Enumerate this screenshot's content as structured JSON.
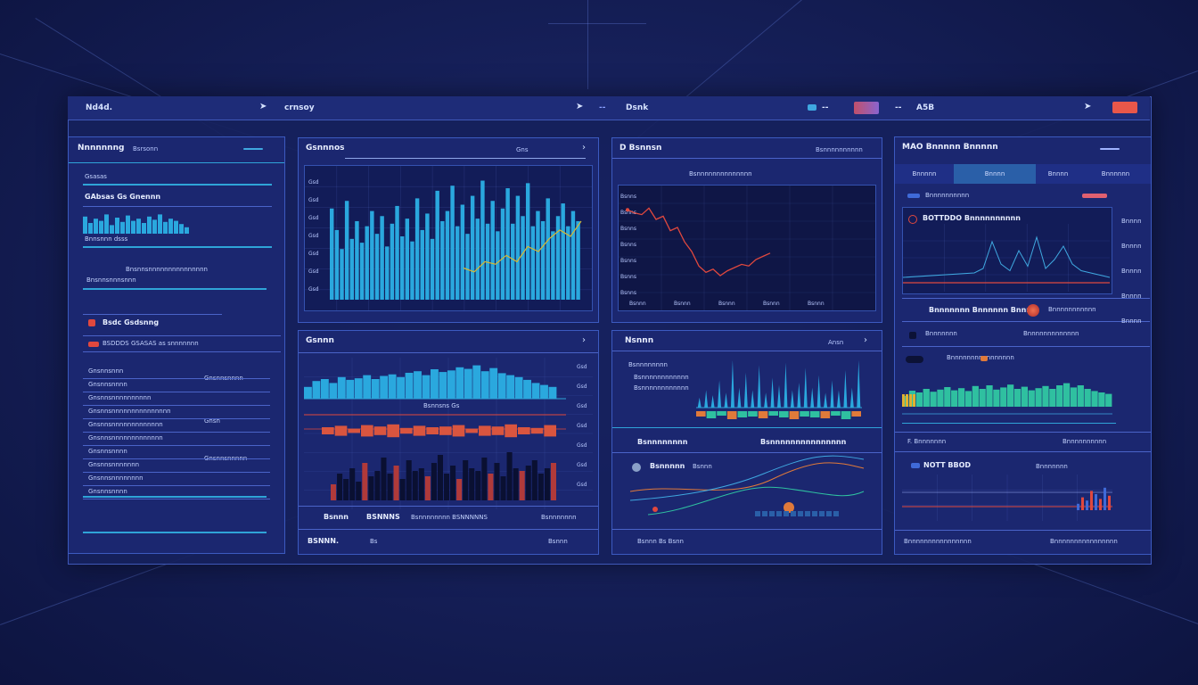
{
  "topbar": {
    "brand": "Nd4d.",
    "nav1": "crnsoy",
    "nav2": "Dsnk",
    "nav3": "A5B",
    "accent": "#e8574a"
  },
  "left_panel": {
    "title": "Nnnnnnng",
    "subtitle": "Bsrsonn",
    "heading1": "Gsasas",
    "heading2": "GAbsas Gs Gnennn",
    "mini_caption": "Bnnsnnn dsss",
    "section_text": "Bnsnnsnnnnnnnnnnnnnnn",
    "section_sub": "Bnsnnsnnnsnnn",
    "item_alert": "Bsdc Gsdsnng",
    "row_header": "BSDDDS GSASAS as snnnnnnn",
    "list_rows": [
      "Gnsnnsnnn",
      "Gnsnnsnnnn",
      "Gnsnnsnnnnnnnnnn",
      "Gnsnnsnnnnnnnnnnnnnnn",
      "Gnsnnsnnnnnnnnnnnnn",
      "Gnsnnsnnnnnnnnnnnnn",
      "Gnsnnsnnnn",
      "Gnsnnsnnnnnnn",
      "Gnsnnsnnnnnnnn",
      "Gnsnnsnnnn"
    ],
    "list_right": [
      "Gnsnnsnnnn",
      "Gnsn",
      "Gnsnnsnnnnn"
    ]
  },
  "panel_a": {
    "title": "Gsnnnos",
    "header_right": "Gns",
    "y_ticks": [
      "Gsd",
      "Gsd",
      "Gsd",
      "Gsd",
      "Gsd",
      "Gsd",
      "Gsd"
    ],
    "bar_color": "#2aa8de",
    "line_color": "#d8b832",
    "bars": [
      0.72,
      0.55,
      0.4,
      0.78,
      0.48,
      0.62,
      0.45,
      0.58,
      0.7,
      0.52,
      0.66,
      0.42,
      0.6,
      0.74,
      0.5,
      0.64,
      0.46,
      0.8,
      0.55,
      0.68,
      0.48,
      0.86,
      0.62,
      0.7,
      0.9,
      0.58,
      0.75,
      0.52,
      0.82,
      0.64,
      0.94,
      0.6,
      0.78,
      0.54,
      0.72,
      0.88,
      0.6,
      0.82,
      0.66,
      0.92,
      0.58,
      0.7,
      0.62,
      0.8,
      0.54,
      0.66,
      0.76,
      0.58,
      0.7,
      0.62
    ]
  },
  "panel_b": {
    "title": "Gsnnn",
    "legend_label": "Bsnnsns Gs",
    "bottom_labels": [
      "Bsnnn",
      "BSNNNS",
      "Bsnnnnnnnn BSNNNNNS",
      "Bsnnnnnnn"
    ],
    "footer_left": "BSNNN.",
    "footer_mid": "Bs",
    "footer_right": "Bsnnn",
    "top_bars": [
      0.3,
      0.45,
      0.5,
      0.4,
      0.55,
      0.48,
      0.52,
      0.6,
      0.5,
      0.58,
      0.62,
      0.55,
      0.66,
      0.7,
      0.6,
      0.75,
      0.68,
      0.72,
      0.8,
      0.76,
      0.85,
      0.7,
      0.78,
      0.65,
      0.6,
      0.55,
      0.48,
      0.4,
      0.35,
      0.3
    ],
    "red_segments": [
      0.5,
      0.7,
      0.3,
      0.8,
      0.6,
      0.9,
      0.4,
      0.7,
      0.5,
      0.6,
      0.8,
      0.3,
      0.7,
      0.6,
      0.9,
      0.5,
      0.4,
      0.8
    ],
    "dark_bars": [
      0.3,
      0.5,
      0.4,
      0.6,
      0.35,
      0.7,
      0.45,
      0.55,
      0.8,
      0.5,
      0.65,
      0.4,
      0.75,
      0.55,
      0.6,
      0.45,
      0.7,
      0.85,
      0.5,
      0.65,
      0.4,
      0.75,
      0.6,
      0.55,
      0.8,
      0.5,
      0.7,
      0.45,
      0.9,
      0.6,
      0.55,
      0.65,
      0.75,
      0.5,
      0.6,
      0.7
    ],
    "bar_color": "#2aa8de",
    "red_color": "#d9553f"
  },
  "panel_c": {
    "title": "D Bsnnsn",
    "header_right": "Bsnnnnnnnnnn",
    "inner_title": "Bsnnnnnnnnnnnnnn",
    "y_ticks": [
      "Bsnns",
      "Bsnns",
      "Bsnns",
      "Bsnns",
      "Bsnns",
      "Bsnns",
      "Bsnns"
    ],
    "x_ticks": [
      "Bsnnn",
      "Bsnnn",
      "Bsnnn",
      "Bsnnn",
      "Bsnnn"
    ],
    "line": [
      0.92,
      0.88,
      0.86,
      0.94,
      0.8,
      0.84,
      0.66,
      0.7,
      0.52,
      0.4,
      0.22,
      0.14,
      0.18,
      0.1,
      0.16,
      0.2,
      0.24,
      0.22,
      0.3,
      0.34,
      0.38
    ],
    "line_color": "#e0483e"
  },
  "panel_d": {
    "title": "Nsnnn",
    "header_right": "Ansn",
    "labels": [
      "Bsnnnnnnnn",
      "Bsnnnnnnnnnnnn",
      "Bsnnnnnnnnnnnn"
    ],
    "mid_left": "Bsnnnnnnnn",
    "mid_right": "Bsnnnnnnnnnnnnnnn",
    "lower_title": "Bsnnnnn",
    "lower_right": "Bsnnn",
    "footer": "Bsnnn Bs Bsnn",
    "spikes": [
      0.2,
      0.35,
      0.25,
      0.55,
      0.3,
      0.95,
      0.4,
      0.7,
      0.35,
      0.85,
      0.3,
      0.6,
      0.45,
      0.9,
      0.35,
      0.5,
      0.8,
      0.4,
      0.65,
      0.3,
      0.55,
      0.35,
      0.75,
      0.4,
      0.95
    ],
    "strip": [
      0.6,
      0.8,
      0.5,
      0.9,
      0.7,
      0.6,
      0.8,
      0.5,
      0.7,
      0.9,
      0.6,
      0.7,
      0.8,
      0.5,
      0.9,
      0.6
    ],
    "spike_color": "#2aa8de",
    "orange": "#e07a3a"
  },
  "panel_e": {
    "title": "MAO Bnnnnn Bnnnnn",
    "tabs": [
      "Bnnnnn",
      "Bnnnn",
      "Bnnnn",
      "Bnnnnnn"
    ],
    "row1_label": "Bnnnnnnnnnn",
    "chart_title": "BOTTDDO Bnnnnnnnnnn",
    "right_ticks": [
      "Bnnnn",
      "Bnnnn",
      "Bnnnn",
      "Bnnnn",
      "Bnnnn"
    ],
    "mid_label": "Bnnnnnnn Bnnnnnn Bnnn",
    "mid_right": "Bnnnnnnnnnnn",
    "row2_label": "Bnnnnnnn",
    "row2_right": "Bnnnnnnnnnnnnn",
    "row3_label": "Bnnnnnnnnnnnnnnnn",
    "section": "F. Bnnnnnnn",
    "section_right": "Bnnnnnnnnnn",
    "lower_title": "NOTT BBOD",
    "lower_right": "Bnnnnnnn",
    "footer_left": "Bnnnnnnnnnnnnnnnn",
    "footer_right": "Bnnnnnnnnnnnnnnnn",
    "wave": [
      0.3,
      0.45,
      0.4,
      0.5,
      0.42,
      0.48,
      0.55,
      0.46,
      0.52,
      0.44,
      0.58,
      0.5,
      0.6,
      0.48,
      0.54,
      0.62,
      0.5,
      0.56,
      0.46,
      0.52,
      0.58,
      0.5,
      0.6,
      0.66,
      0.54,
      0.6,
      0.5,
      0.44,
      0.4,
      0.36
    ],
    "peaks": [
      0.1,
      0.2,
      0.8,
      0.3,
      0.15,
      0.6,
      0.25,
      0.9,
      0.2,
      0.4,
      0.7,
      0.3,
      0.15
    ],
    "lower_bars": [
      0.2,
      0.4,
      0.3,
      0.6,
      0.5,
      0.35,
      0.7,
      0.45
    ],
    "wave_color": "#2fc0a0",
    "red": "#e0483e"
  }
}
